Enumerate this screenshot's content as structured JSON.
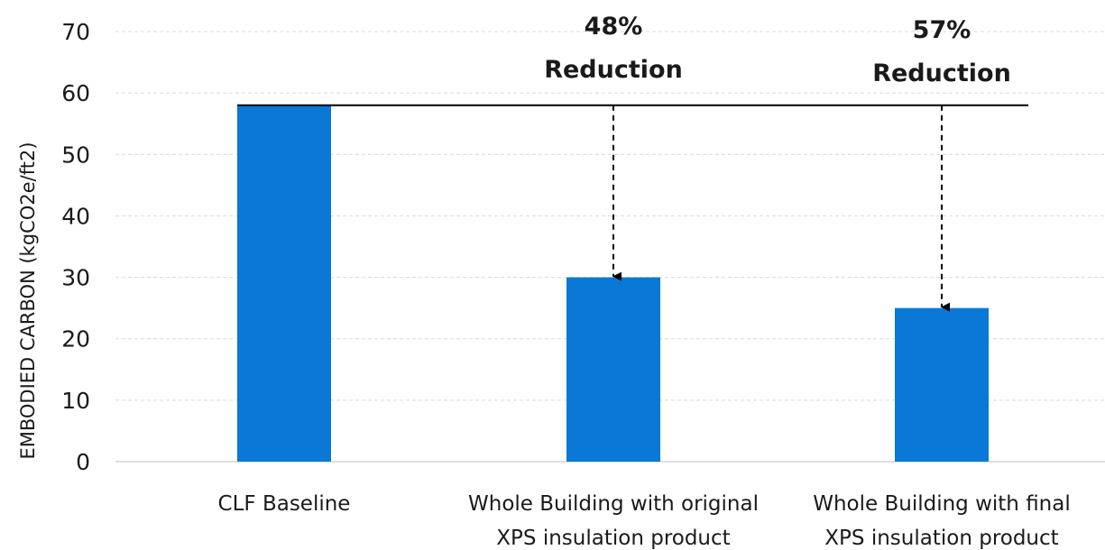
{
  "chart_data": {
    "type": "bar",
    "categories": [
      [
        "CLF Baseline"
      ],
      [
        "Whole Building with original",
        "XPS insulation product"
      ],
      [
        "Whole Building with final",
        "XPS insulation product"
      ]
    ],
    "values": [
      58,
      30,
      25
    ],
    "ylabel": "EMBODIED CARBON (kgCO2e/ft2)",
    "ylim": [
      0,
      70
    ],
    "yticks": [
      0,
      10,
      20,
      30,
      40,
      50,
      60,
      70
    ],
    "grid": true,
    "bar_color": "#0a78d7",
    "gridline_color": "#d9d9d9",
    "reference_line": {
      "value": 58,
      "color": "#000000"
    },
    "annotations": [
      {
        "target": 1,
        "lines": [
          "48%",
          "Reduction"
        ]
      },
      {
        "target": 2,
        "lines": [
          "57%",
          "Reduction"
        ]
      }
    ]
  }
}
